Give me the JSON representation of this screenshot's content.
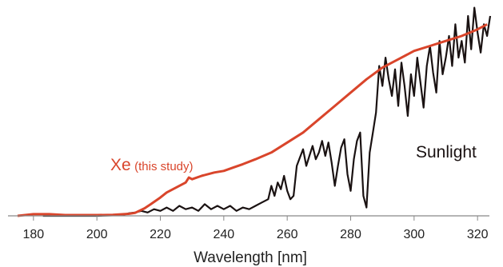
{
  "chart_data": {
    "type": "line",
    "xlabel": "Wavelength [nm]",
    "ylabel": "",
    "xlim": [
      175,
      325
    ],
    "ylim": [
      0,
      1.2
    ],
    "xticks": [
      180,
      200,
      220,
      240,
      260,
      280,
      300,
      320
    ],
    "x_tick_labels": [
      "180",
      "200",
      "220",
      "240",
      "260",
      "280",
      "300",
      "320"
    ],
    "grid": false,
    "series": [
      {
        "name": "Xe",
        "name_suffix": "(this study)",
        "color": "#d9452b",
        "points": [
          [
            175,
            0.0
          ],
          [
            180,
            0.01
          ],
          [
            185,
            0.01
          ],
          [
            190,
            0.005
          ],
          [
            195,
            0.005
          ],
          [
            200,
            0.005
          ],
          [
            205,
            0.006
          ],
          [
            210,
            0.012
          ],
          [
            212,
            0.018
          ],
          [
            215,
            0.045
          ],
          [
            217,
            0.07
          ],
          [
            220,
            0.11
          ],
          [
            222,
            0.14
          ],
          [
            225,
            0.17
          ],
          [
            228,
            0.2
          ],
          [
            229,
            0.23
          ],
          [
            230,
            0.22
          ],
          [
            233,
            0.24
          ],
          [
            237,
            0.26
          ],
          [
            240,
            0.27
          ],
          [
            243,
            0.29
          ],
          [
            246,
            0.31
          ],
          [
            250,
            0.34
          ],
          [
            255,
            0.38
          ],
          [
            260,
            0.44
          ],
          [
            265,
            0.5
          ],
          [
            270,
            0.58
          ],
          [
            275,
            0.66
          ],
          [
            280,
            0.74
          ],
          [
            285,
            0.82
          ],
          [
            290,
            0.89
          ],
          [
            295,
            0.94
          ],
          [
            300,
            0.99
          ],
          [
            305,
            1.02
          ],
          [
            310,
            1.05
          ],
          [
            315,
            1.08
          ],
          [
            320,
            1.12
          ],
          [
            323,
            1.15
          ]
        ]
      },
      {
        "name": "Sunlight",
        "color": "#1a1212",
        "points": [
          [
            183,
            0.0
          ],
          [
            190,
            0.0
          ],
          [
            195,
            0.0
          ],
          [
            200,
            0.0
          ],
          [
            205,
            0.003
          ],
          [
            208,
            0.005
          ],
          [
            210,
            0.015
          ],
          [
            212,
            0.02
          ],
          [
            214,
            0.03
          ],
          [
            216,
            0.02
          ],
          [
            218,
            0.04
          ],
          [
            220,
            0.03
          ],
          [
            222,
            0.05
          ],
          [
            224,
            0.03
          ],
          [
            226,
            0.06
          ],
          [
            228,
            0.04
          ],
          [
            230,
            0.05
          ],
          [
            232,
            0.03
          ],
          [
            234,
            0.07
          ],
          [
            236,
            0.04
          ],
          [
            238,
            0.06
          ],
          [
            240,
            0.04
          ],
          [
            242,
            0.06
          ],
          [
            244,
            0.03
          ],
          [
            246,
            0.05
          ],
          [
            248,
            0.04
          ],
          [
            250,
            0.06
          ],
          [
            252,
            0.08
          ],
          [
            254,
            0.1
          ],
          [
            255,
            0.18
          ],
          [
            256,
            0.12
          ],
          [
            257,
            0.2
          ],
          [
            258,
            0.16
          ],
          [
            259,
            0.24
          ],
          [
            260,
            0.15
          ],
          [
            261,
            0.1
          ],
          [
            262,
            0.12
          ],
          [
            263,
            0.3
          ],
          [
            264,
            0.35
          ],
          [
            265,
            0.4
          ],
          [
            266,
            0.3
          ],
          [
            267,
            0.36
          ],
          [
            268,
            0.42
          ],
          [
            269,
            0.34
          ],
          [
            270,
            0.38
          ],
          [
            271,
            0.45
          ],
          [
            272,
            0.36
          ],
          [
            273,
            0.44
          ],
          [
            274,
            0.32
          ],
          [
            275,
            0.18
          ],
          [
            276,
            0.3
          ],
          [
            277,
            0.41
          ],
          [
            278,
            0.46
          ],
          [
            279,
            0.25
          ],
          [
            280,
            0.15
          ],
          [
            281,
            0.34
          ],
          [
            282,
            0.45
          ],
          [
            283,
            0.5
          ],
          [
            284,
            0.12
          ],
          [
            285,
            0.05
          ],
          [
            286,
            0.38
          ],
          [
            287,
            0.5
          ],
          [
            288,
            0.62
          ],
          [
            289,
            0.9
          ],
          [
            290,
            0.78
          ],
          [
            291,
            0.95
          ],
          [
            292,
            0.82
          ],
          [
            293,
            0.72
          ],
          [
            294,
            0.88
          ],
          [
            295,
            0.66
          ],
          [
            296,
            0.92
          ],
          [
            297,
            0.78
          ],
          [
            298,
            0.6
          ],
          [
            299,
            0.85
          ],
          [
            300,
            0.72
          ],
          [
            301,
            0.95
          ],
          [
            302,
            0.8
          ],
          [
            303,
            0.65
          ],
          [
            304,
            0.9
          ],
          [
            305,
            1.02
          ],
          [
            306,
            0.86
          ],
          [
            307,
            0.74
          ],
          [
            308,
            1.05
          ],
          [
            309,
            0.85
          ],
          [
            310,
            0.95
          ],
          [
            311,
            1.08
          ],
          [
            312,
            0.9
          ],
          [
            313,
            1.15
          ],
          [
            314,
            0.95
          ],
          [
            315,
            1.05
          ],
          [
            316,
            0.92
          ],
          [
            317,
            1.2
          ],
          [
            318,
            1.0
          ],
          [
            319,
            1.25
          ],
          [
            320,
            1.1
          ],
          [
            321,
            0.98
          ],
          [
            322,
            1.15
          ],
          [
            323,
            1.08
          ],
          [
            324,
            1.2
          ]
        ]
      }
    ],
    "annotations": [
      {
        "text": "Xe",
        "suffix": "(this study)",
        "series": "Xe",
        "color": "#d9452b"
      },
      {
        "text": "Sunlight",
        "series": "Sunlight",
        "color": "#1a1212"
      }
    ]
  }
}
